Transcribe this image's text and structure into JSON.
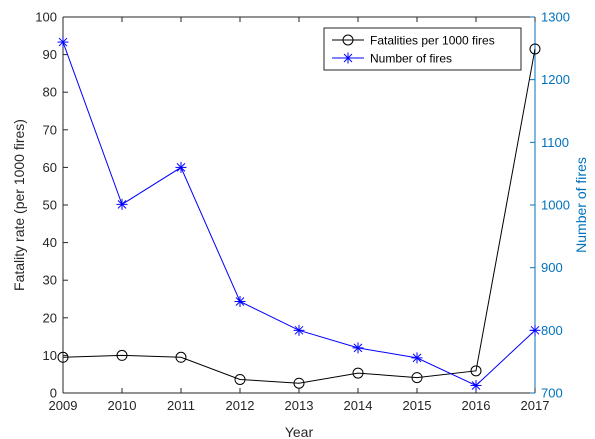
{
  "chart_data": {
    "type": "line",
    "title": "",
    "xlabel": "Year",
    "ylabel_left": "Fatality rate (per 1000 fires)",
    "ylabel_right": "Number of fires",
    "x": [
      2009,
      2010,
      2011,
      2012,
      2013,
      2014,
      2015,
      2016,
      2017
    ],
    "xlim": [
      2009,
      2017
    ],
    "ylim_left": [
      0,
      100
    ],
    "ylim_right": [
      700,
      1300
    ],
    "yticks_left": [
      0,
      10,
      20,
      30,
      40,
      50,
      60,
      70,
      80,
      90,
      100
    ],
    "yticks_right": [
      700,
      800,
      900,
      1000,
      1100,
      1200,
      1300
    ],
    "grid": false,
    "legend_position": "top-right",
    "right_axis_color": "#0072BD",
    "series": [
      {
        "name": "Fatalities per 1000 fires",
        "axis": "left",
        "marker": "circle",
        "color": "#000000",
        "values": [
          9.5,
          10.0,
          9.5,
          3.6,
          2.6,
          5.3,
          4.1,
          5.9,
          91.5
        ]
      },
      {
        "name": "Number of fires",
        "axis": "right",
        "marker": "asterisk",
        "color": "#0000FF",
        "values": [
          1260,
          1001,
          1060,
          846,
          800,
          772,
          756,
          712,
          800
        ]
      }
    ]
  }
}
